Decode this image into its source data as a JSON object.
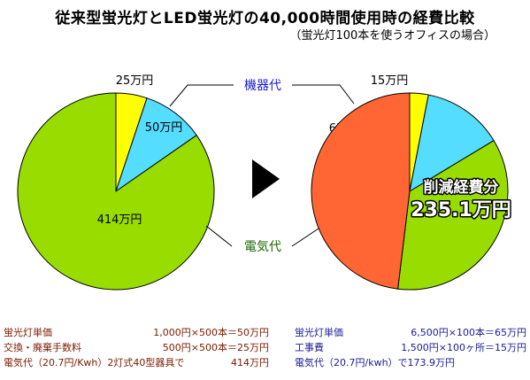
{
  "title": "従来型蛍光灯とLED蛍光灯の40,000時間使用時の経費比較",
  "subtitle": "（蛍光灯100本を使うオフィスの場合）",
  "callouts": {
    "equipment": "機器代",
    "electricity": "電気代"
  },
  "reduction": {
    "line1": "削減経費分",
    "line2": "235.1万円"
  },
  "chart_data": [
    {
      "type": "pie",
      "name": "従来型蛍光灯",
      "unit": "万円",
      "slices": [
        {
          "label": "25万円",
          "value": 25,
          "color": "#ffff00"
        },
        {
          "label": "50万円",
          "value": 50,
          "color": "#55ddff"
        },
        {
          "label": "414万円",
          "value": 414,
          "color": "#99dd00"
        }
      ]
    },
    {
      "type": "pie",
      "name": "LED蛍光灯",
      "unit": "万円",
      "slices": [
        {
          "label": "15万円",
          "value": 15,
          "color": "#ffff00"
        },
        {
          "label": "65万円",
          "value": 65,
          "color": "#55ddff"
        },
        {
          "label": "173.9万円",
          "value": 173.9,
          "color": "#99dd00"
        },
        {
          "label": "235.1万円",
          "value": 235.1,
          "color": "#ff6633"
        }
      ]
    }
  ],
  "panels": {
    "conventional": {
      "title": "従来型蛍光灯",
      "rows": [
        {
          "label": "蛍光灯単価",
          "value": "1,000円×500本＝50万円"
        },
        {
          "label": "交換・廃棄手数料",
          "value": "500円×500本＝25万円"
        },
        {
          "label": "電気代（20.7円/Kwh）2灯式40型器具で",
          "value": "414万円"
        }
      ]
    },
    "led": {
      "title": "LED蛍光灯",
      "rows": [
        {
          "label": "蛍光灯単価",
          "value": "6,500円×100本＝65万円"
        },
        {
          "label": "工事費",
          "value": "1,500円×100ヶ所＝15万円"
        },
        {
          "label": "電気代（20.7円/kwh）で173.9万円",
          "value": ""
        }
      ]
    }
  }
}
